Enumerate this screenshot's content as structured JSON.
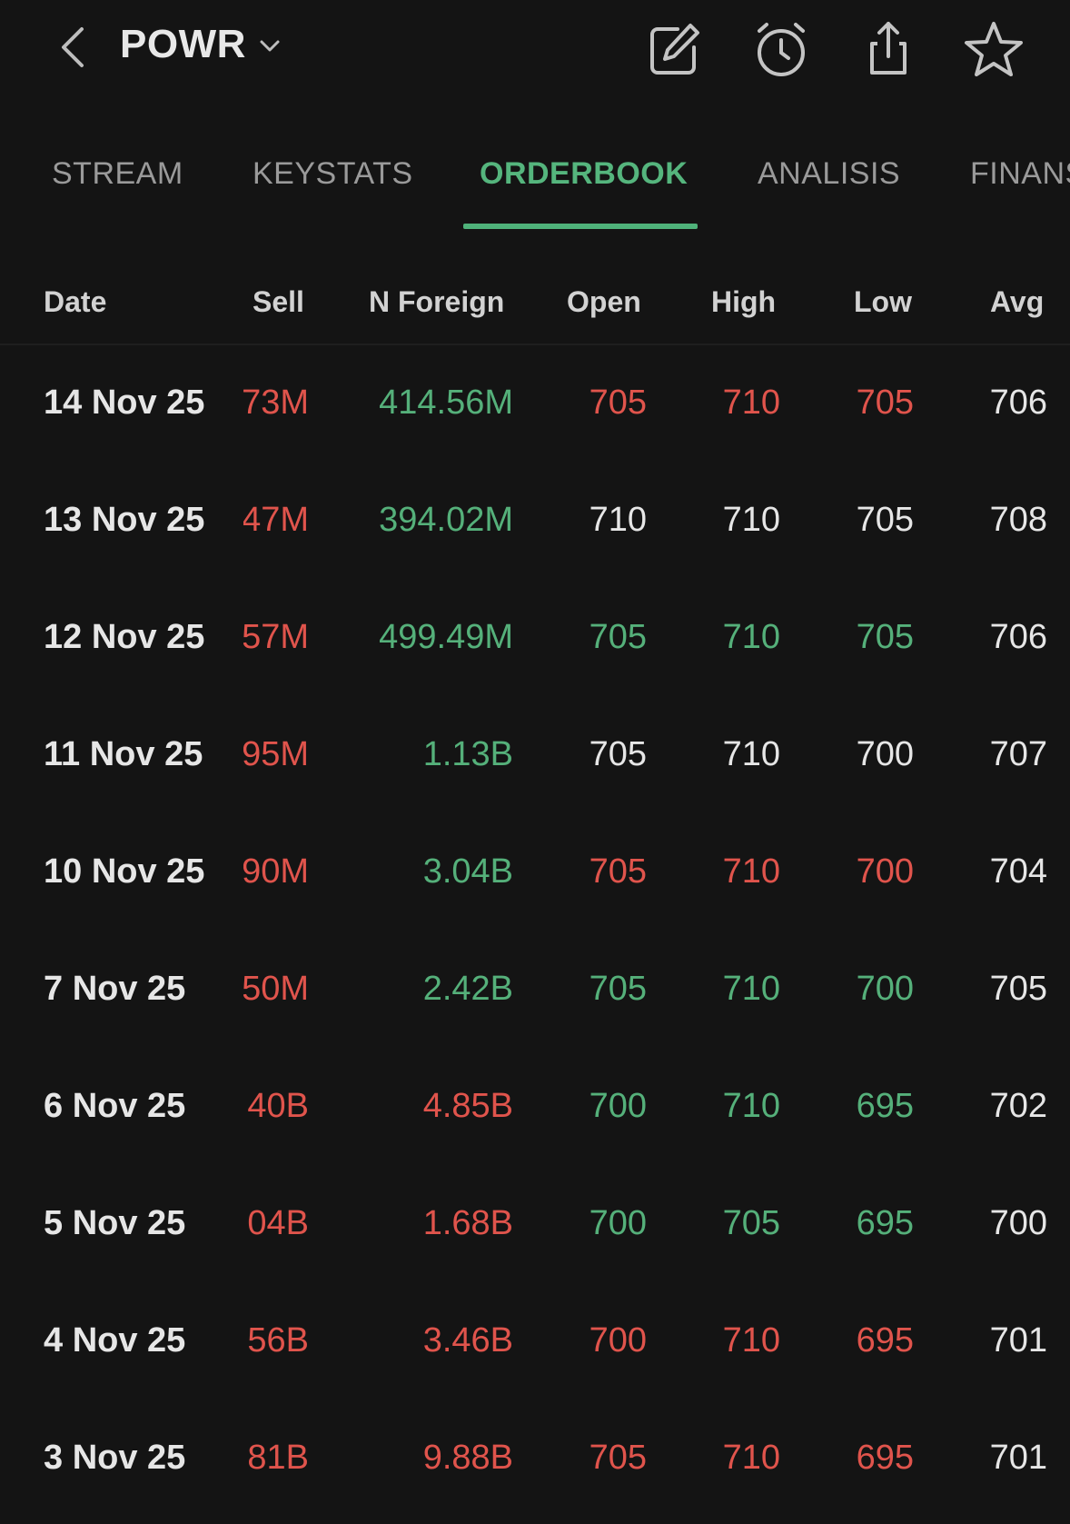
{
  "header": {
    "ticker": "POWR"
  },
  "tabs": [
    {
      "label": "STREAM",
      "active": false
    },
    {
      "label": "KEYSTATS",
      "active": false
    },
    {
      "label": "ORDERBOOK",
      "active": true
    },
    {
      "label": "ANALISIS",
      "active": false
    },
    {
      "label": "FINANS",
      "active": false
    }
  ],
  "table": {
    "columns": [
      "Date",
      "Sell",
      "N Foreign",
      "Open",
      "High",
      "Low",
      "Avg"
    ],
    "rows": [
      {
        "date": "14 Nov 25",
        "sell": "73M",
        "nforeign": "414.56M",
        "open": "705",
        "high": "710",
        "low": "705",
        "avg": "706",
        "colors": {
          "sell": "red",
          "nforeign": "green",
          "open": "red",
          "high": "red",
          "low": "red",
          "avg": "white"
        }
      },
      {
        "date": "13 Nov 25",
        "sell": "47M",
        "nforeign": "394.02M",
        "open": "710",
        "high": "710",
        "low": "705",
        "avg": "708",
        "colors": {
          "sell": "red",
          "nforeign": "green",
          "open": "white",
          "high": "white",
          "low": "white",
          "avg": "white"
        }
      },
      {
        "date": "12 Nov 25",
        "sell": "57M",
        "nforeign": "499.49M",
        "open": "705",
        "high": "710",
        "low": "705",
        "avg": "706",
        "colors": {
          "sell": "red",
          "nforeign": "green",
          "open": "green",
          "high": "green",
          "low": "green",
          "avg": "white"
        }
      },
      {
        "date": "11 Nov 25",
        "sell": "95M",
        "nforeign": "1.13B",
        "open": "705",
        "high": "710",
        "low": "700",
        "avg": "707",
        "colors": {
          "sell": "red",
          "nforeign": "green",
          "open": "white",
          "high": "white",
          "low": "white",
          "avg": "white"
        }
      },
      {
        "date": "10 Nov 25",
        "sell": "90M",
        "nforeign": "3.04B",
        "open": "705",
        "high": "710",
        "low": "700",
        "avg": "704",
        "colors": {
          "sell": "red",
          "nforeign": "green",
          "open": "red",
          "high": "red",
          "low": "red",
          "avg": "white"
        }
      },
      {
        "date": "7 Nov 25",
        "sell": "50M",
        "nforeign": "2.42B",
        "open": "705",
        "high": "710",
        "low": "700",
        "avg": "705",
        "colors": {
          "sell": "red",
          "nforeign": "green",
          "open": "green",
          "high": "green",
          "low": "green",
          "avg": "white"
        }
      },
      {
        "date": "6 Nov 25",
        "sell": "40B",
        "nforeign": "4.85B",
        "open": "700",
        "high": "710",
        "low": "695",
        "avg": "702",
        "colors": {
          "sell": "red",
          "nforeign": "red",
          "open": "green",
          "high": "green",
          "low": "green",
          "avg": "white"
        }
      },
      {
        "date": "5 Nov 25",
        "sell": "04B",
        "nforeign": "1.68B",
        "open": "700",
        "high": "705",
        "low": "695",
        "avg": "700",
        "colors": {
          "sell": "red",
          "nforeign": "red",
          "open": "green",
          "high": "green",
          "low": "green",
          "avg": "white"
        }
      },
      {
        "date": "4 Nov 25",
        "sell": "56B",
        "nforeign": "3.46B",
        "open": "700",
        "high": "710",
        "low": "695",
        "avg": "701",
        "colors": {
          "sell": "red",
          "nforeign": "red",
          "open": "red",
          "high": "red",
          "low": "red",
          "avg": "white"
        }
      },
      {
        "date": "3 Nov 25",
        "sell": "81B",
        "nforeign": "9.88B",
        "open": "705",
        "high": "710",
        "low": "695",
        "avg": "701",
        "colors": {
          "sell": "red",
          "nforeign": "red",
          "open": "red",
          "high": "red",
          "low": "red",
          "avg": "white"
        }
      }
    ]
  },
  "icons": {
    "back": "chevron-left-icon",
    "ticker_menu": "chevron-down-icon",
    "edit": "edit-icon",
    "alarm": "alarm-icon",
    "share": "share-icon",
    "watchlist": "star-icon"
  },
  "colors": {
    "background": "#141414",
    "accent": "#55b57d",
    "up": "#55b07a",
    "down": "#e0544c",
    "neutral": "#e6e6e6"
  }
}
